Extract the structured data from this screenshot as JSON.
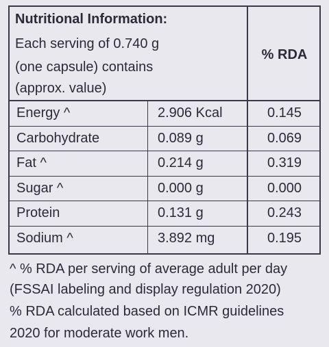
{
  "header": {
    "title": "Nutritional Information:",
    "lines": [
      "Each serving of 0.740 g",
      "(one capsule) contains",
      "(approx. value)"
    ],
    "rda": "% RDA"
  },
  "table": {
    "rows": [
      [
        "Energy ^",
        "2.906 Kcal",
        "0.145"
      ],
      [
        "Carbohydrate",
        "0.089 g",
        "0.069"
      ],
      [
        "Fat ^",
        "0.214 g",
        "0.319"
      ],
      [
        "Sugar ^",
        "0.000 g",
        "0.000"
      ],
      [
        "Protein",
        "0.131 g",
        "0.243"
      ],
      [
        "Sodium ^",
        "3.892 mg",
        "0.195"
      ]
    ]
  },
  "footnote": [
    "^ % RDA per serving of average adult per day",
    "(FSSAI labeling and display regulation 2020)",
    "% RDA calculated based on ICMR guidelines",
    "2020 for moderate work men."
  ]
}
